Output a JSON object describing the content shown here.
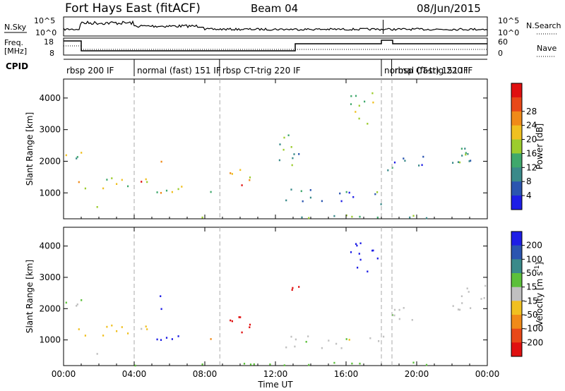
{
  "header": {
    "title": "Fort Hays East (fitACF)",
    "beam": "Beam 04",
    "date": "08/Jun/2015"
  },
  "noise_panel": {
    "left_label": "N.Sky",
    "right_label": "N.Search",
    "left_ticks": [
      "10^5",
      "10^0"
    ],
    "right_ticks": [
      "10^5",
      "10^0"
    ]
  },
  "freq_panel": {
    "left_label_1": "Freq.",
    "left_label_2": "[MHz]",
    "right_label": "Nave",
    "left_ticks": [
      "18",
      "8"
    ],
    "right_ticks": [
      "60",
      "0"
    ]
  },
  "cpid_panel": {
    "label": "CPID",
    "segments": [
      {
        "start": "00:00",
        "text": "rbsp 200 IF"
      },
      {
        "start": "04:00",
        "text": "normal (fast) 151 IF"
      },
      {
        "start": "08:50",
        "text": "rbsp CT-trig 220 IF"
      },
      {
        "start": "18:00",
        "text": "normal (fast) 151 IF"
      },
      {
        "start": "18:35",
        "text": "rbsp CT-trig 220 IF"
      }
    ]
  },
  "chart_data": [
    {
      "type": "heatmap",
      "name": "power",
      "ylabel": "Slant Range [km]",
      "xlabel": "",
      "ylim": [
        180,
        4600
      ],
      "xlim": [
        "00:00",
        "24:00"
      ],
      "yticks": [
        1000,
        2000,
        3000,
        4000
      ],
      "colorbar": {
        "label": "Power [dB]",
        "ticks": [
          4,
          8,
          12,
          16,
          20,
          24,
          28
        ],
        "colors": [
          "#1e1ee6",
          "#2b55b0",
          "#3a8a8a",
          "#3fa86c",
          "#9ccc2e",
          "#f0c020",
          "#f08a18",
          "#e84818",
          "#e01010"
        ]
      },
      "regions": [
        {
          "t0": 0.1,
          "t1": 1.0,
          "r0": 1950,
          "r1": 2800,
          "level": 16
        },
        {
          "t0": 0.7,
          "t1": 3.8,
          "r0": 1100,
          "r1": 1500,
          "level": 18
        },
        {
          "t0": 1.5,
          "t1": 2.2,
          "r0": 500,
          "r1": 700,
          "level": 20
        },
        {
          "t0": 3.8,
          "t1": 5.0,
          "r0": 1200,
          "r1": 1700,
          "level": 22
        },
        {
          "t0": 4.8,
          "t1": 5.6,
          "r0": 2000,
          "r1": 2500,
          "level": 22
        },
        {
          "t0": 5.2,
          "t1": 7.0,
          "r0": 800,
          "r1": 1400,
          "level": 20
        },
        {
          "t0": 7.2,
          "t1": 8.4,
          "r0": 900,
          "r1": 1300,
          "level": 18
        },
        {
          "t0": 9.0,
          "t1": 10.8,
          "r0": 850,
          "r1": 1800,
          "level": 24
        },
        {
          "t0": 12.0,
          "t1": 13.4,
          "r0": 1800,
          "r1": 2900,
          "level": 14
        },
        {
          "t0": 12.5,
          "t1": 16.5,
          "r0": 700,
          "r1": 1200,
          "level": 8
        },
        {
          "t0": 16.2,
          "t1": 17.8,
          "r0": 3200,
          "r1": 4300,
          "level": 18
        },
        {
          "t0": 17.3,
          "t1": 18.3,
          "r0": 600,
          "r1": 1200,
          "level": 12
        },
        {
          "t0": 18.3,
          "t1": 20.5,
          "r0": 1600,
          "r1": 2200,
          "level": 8
        },
        {
          "t0": 22.0,
          "t1": 24.0,
          "r0": 1900,
          "r1": 2800,
          "level": 12
        },
        {
          "t0": 4.0,
          "t1": 22.0,
          "r0": 200,
          "r1": 320,
          "level": 14
        }
      ]
    },
    {
      "type": "heatmap",
      "name": "velocity",
      "ylabel": "Slant Range [km]",
      "xlabel": "Time UT",
      "ylim": [
        180,
        4600
      ],
      "xlim": [
        "00:00",
        "24:00"
      ],
      "yticks": [
        1000,
        2000,
        3000,
        4000
      ],
      "xticks": [
        "00:00",
        "04:00",
        "08:00",
        "12:00",
        "16:00",
        "20:00",
        "00:00"
      ],
      "colorbar": {
        "label": "Velocity [m s^-1]",
        "ticks": [
          200,
          100,
          50,
          15,
          -15,
          -50,
          -100,
          -200
        ],
        "colors": [
          "#1e1ee6",
          "#2b55b0",
          "#3a8a8a",
          "#5cc03a",
          "#c0c0c0",
          "#f0c020",
          "#f08a18",
          "#e84818",
          "#e01010"
        ]
      },
      "regions": [
        {
          "t0": 0.1,
          "t1": 1.0,
          "r0": 1950,
          "r1": 2800,
          "level": 0
        },
        {
          "t0": 0.7,
          "t1": 3.8,
          "r0": 1100,
          "r1": 1500,
          "level": -40
        },
        {
          "t0": 1.5,
          "t1": 2.2,
          "r0": 500,
          "r1": 700,
          "level": 0
        },
        {
          "t0": 3.8,
          "t1": 5.0,
          "r0": 1200,
          "r1": 1700,
          "level": -20
        },
        {
          "t0": 4.8,
          "t1": 5.6,
          "r0": 2000,
          "r1": 2600,
          "level": 220
        },
        {
          "t0": 5.2,
          "t1": 7.0,
          "r0": 800,
          "r1": 1400,
          "level": 220
        },
        {
          "t0": 7.2,
          "t1": 8.4,
          "r0": 900,
          "r1": 1300,
          "level": -60
        },
        {
          "t0": 9.0,
          "t1": 10.8,
          "r0": 850,
          "r1": 1800,
          "level": -220
        },
        {
          "t0": 12.0,
          "t1": 13.4,
          "r0": 2600,
          "r1": 2900,
          "level": -220
        },
        {
          "t0": 12.5,
          "t1": 16.5,
          "r0": 700,
          "r1": 1200,
          "level": 0
        },
        {
          "t0": 16.2,
          "t1": 17.8,
          "r0": 3200,
          "r1": 4300,
          "level": 220
        },
        {
          "t0": 17.3,
          "t1": 18.3,
          "r0": 600,
          "r1": 1200,
          "level": 0
        },
        {
          "t0": 18.3,
          "t1": 20.5,
          "r0": 1600,
          "r1": 2200,
          "level": 0
        },
        {
          "t0": 22.0,
          "t1": 24.0,
          "r0": 1900,
          "r1": 2800,
          "level": 0
        },
        {
          "t0": 4.0,
          "t1": 22.0,
          "r0": 200,
          "r1": 320,
          "level": 30
        }
      ]
    }
  ],
  "vertical_markers_hours": [
    4.0,
    8.85,
    18.0,
    18.6
  ]
}
